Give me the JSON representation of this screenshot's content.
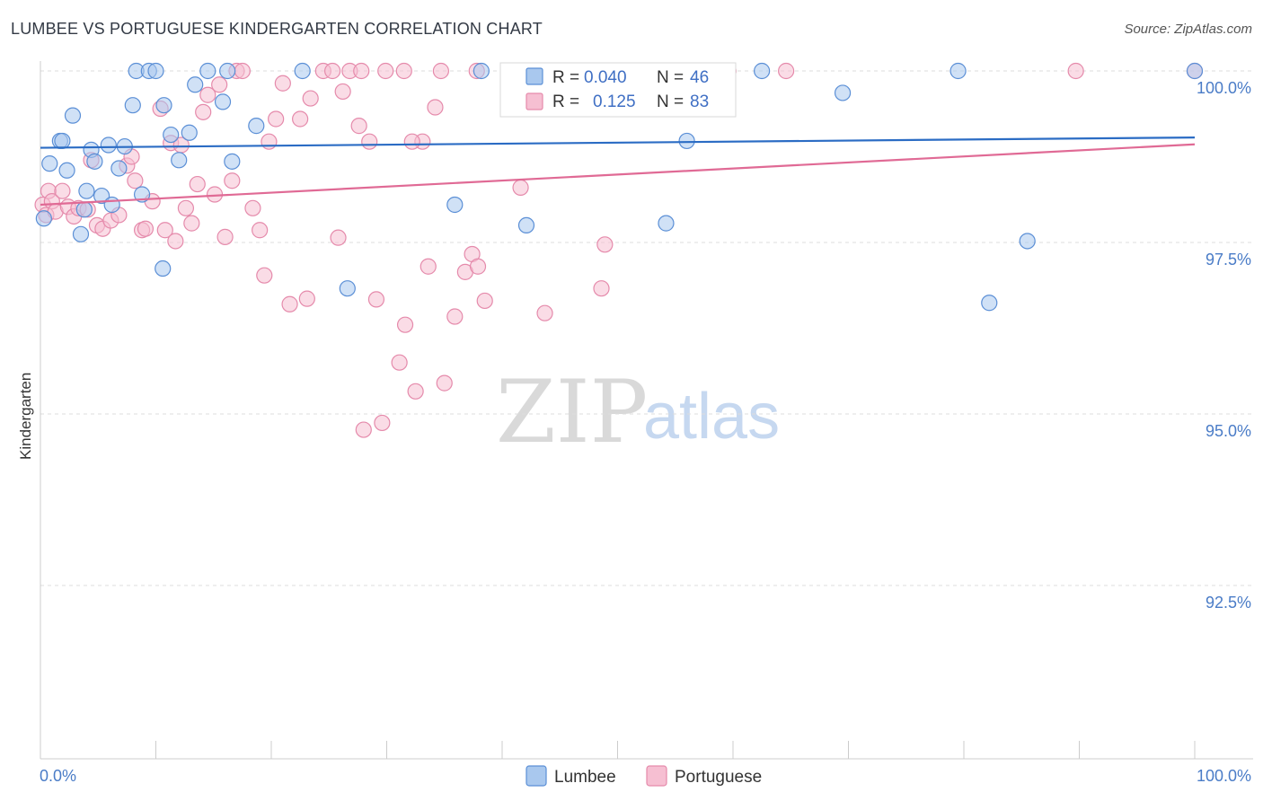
{
  "title": "LUMBEE VS PORTUGUESE KINDERGARTEN CORRELATION CHART",
  "source": "Source: ZipAtlas.com",
  "watermark": {
    "part1": "ZIP",
    "part2": "atlas"
  },
  "legend": {
    "rows": [
      {
        "r_label": "R =",
        "r_value": "0.040",
        "n_label": "N =",
        "n_value": "46"
      },
      {
        "r_label": "R =",
        "r_value": "0.125",
        "n_label": "N =",
        "n_value": "83"
      }
    ]
  },
  "bottom_legend": {
    "lumbee": "Lumbee",
    "portuguese": "Portuguese"
  },
  "colors": {
    "lumbee_fill": "#a9c8ee",
    "lumbee_stroke": "#5b8fd6",
    "lumbee_line": "#2b6cc4",
    "portuguese_fill": "#f6bfd2",
    "portuguese_stroke": "#e58aab",
    "portuguese_line": "#e06a95"
  },
  "chart_data": {
    "type": "scatter",
    "title": "LUMBEE VS PORTUGUESE KINDERGARTEN CORRELATION CHART",
    "xlabel": "",
    "ylabel": "Kindergarten",
    "xlim": [
      0,
      100
    ],
    "ylim": [
      90.2,
      100.4
    ],
    "x_tick_labels": [
      "0.0%",
      "100.0%"
    ],
    "y_ticks": [
      {
        "value": 100.0,
        "label": "100.0%"
      },
      {
        "value": 97.5,
        "label": "97.5%"
      },
      {
        "value": 95.0,
        "label": "95.0%"
      },
      {
        "value": 92.5,
        "label": "92.5%"
      }
    ],
    "series": [
      {
        "name": "Lumbee",
        "R": 0.04,
        "N": 46,
        "trend": {
          "x": [
            0,
            100
          ],
          "y": [
            98.88,
            99.03
          ]
        },
        "points": [
          [
            0.3,
            97.85
          ],
          [
            0.8,
            98.65
          ],
          [
            1.7,
            98.98
          ],
          [
            2.3,
            98.55
          ],
          [
            2.8,
            99.35
          ],
          [
            3.5,
            97.62
          ],
          [
            3.8,
            97.98
          ],
          [
            4.4,
            98.85
          ],
          [
            4.7,
            98.68
          ],
          [
            5.3,
            98.18
          ],
          [
            5.9,
            98.92
          ],
          [
            6.2,
            98.05
          ],
          [
            6.8,
            98.58
          ],
          [
            7.3,
            98.9
          ],
          [
            8.0,
            99.5
          ],
          [
            8.3,
            100.0
          ],
          [
            8.8,
            98.2
          ],
          [
            9.4,
            100.0
          ],
          [
            10.0,
            100.0
          ],
          [
            10.6,
            97.12
          ],
          [
            10.7,
            99.5
          ],
          [
            11.3,
            99.07
          ],
          [
            12.0,
            98.7
          ],
          [
            12.9,
            99.1
          ],
          [
            13.4,
            99.8
          ],
          [
            14.5,
            100.0
          ],
          [
            15.8,
            99.55
          ],
          [
            16.2,
            100.0
          ],
          [
            16.6,
            98.68
          ],
          [
            18.7,
            99.2
          ],
          [
            22.7,
            100.0
          ],
          [
            26.6,
            96.83
          ],
          [
            35.9,
            98.05
          ],
          [
            38.2,
            100.0
          ],
          [
            42.1,
            97.75
          ],
          [
            48.3,
            100.0
          ],
          [
            54.2,
            97.78
          ],
          [
            56.0,
            98.98
          ],
          [
            62.5,
            100.0
          ],
          [
            69.5,
            99.68
          ],
          [
            79.5,
            100.0
          ],
          [
            82.2,
            96.62
          ],
          [
            85.5,
            97.52
          ],
          [
            100.0,
            100.0
          ],
          [
            1.9,
            98.98
          ],
          [
            4.0,
            98.25
          ]
        ]
      },
      {
        "name": "Portuguese",
        "R": 0.125,
        "N": 83,
        "trend": {
          "x": [
            0,
            100
          ],
          "y": [
            98.05,
            98.93
          ]
        },
        "points": [
          [
            0.2,
            98.05
          ],
          [
            0.5,
            97.9
          ],
          [
            0.7,
            98.25
          ],
          [
            1.0,
            98.1
          ],
          [
            1.3,
            97.95
          ],
          [
            1.9,
            98.25
          ],
          [
            2.4,
            98.02
          ],
          [
            2.9,
            97.88
          ],
          [
            3.3,
            98.0
          ],
          [
            4.1,
            97.98
          ],
          [
            4.4,
            98.7
          ],
          [
            4.9,
            97.75
          ],
          [
            5.4,
            97.7
          ],
          [
            6.1,
            97.82
          ],
          [
            6.8,
            97.9
          ],
          [
            7.5,
            98.62
          ],
          [
            7.9,
            98.75
          ],
          [
            8.2,
            98.4
          ],
          [
            8.8,
            97.68
          ],
          [
            9.1,
            97.7
          ],
          [
            9.7,
            98.1
          ],
          [
            10.4,
            99.45
          ],
          [
            10.8,
            97.68
          ],
          [
            11.3,
            98.95
          ],
          [
            11.7,
            97.52
          ],
          [
            12.2,
            98.92
          ],
          [
            12.6,
            98.0
          ],
          [
            13.1,
            97.78
          ],
          [
            13.6,
            98.35
          ],
          [
            14.1,
            99.4
          ],
          [
            14.5,
            99.65
          ],
          [
            15.1,
            98.2
          ],
          [
            15.5,
            99.8
          ],
          [
            16.0,
            97.58
          ],
          [
            16.6,
            98.4
          ],
          [
            17.0,
            100.0
          ],
          [
            17.5,
            100.0
          ],
          [
            18.4,
            98.0
          ],
          [
            19.0,
            97.68
          ],
          [
            19.4,
            97.02
          ],
          [
            19.8,
            98.97
          ],
          [
            20.4,
            99.3
          ],
          [
            21.0,
            99.82
          ],
          [
            21.6,
            96.6
          ],
          [
            22.5,
            99.3
          ],
          [
            23.1,
            96.68
          ],
          [
            23.4,
            99.6
          ],
          [
            24.5,
            100.0
          ],
          [
            25.3,
            100.0
          ],
          [
            25.8,
            97.57
          ],
          [
            26.2,
            99.7
          ],
          [
            26.8,
            100.0
          ],
          [
            27.6,
            99.2
          ],
          [
            28.5,
            98.97
          ],
          [
            29.1,
            96.67
          ],
          [
            29.6,
            94.87
          ],
          [
            29.9,
            100.0
          ],
          [
            31.1,
            95.75
          ],
          [
            31.6,
            96.3
          ],
          [
            32.5,
            95.33
          ],
          [
            33.1,
            98.97
          ],
          [
            33.6,
            97.15
          ],
          [
            34.2,
            99.47
          ],
          [
            35.0,
            95.45
          ],
          [
            35.9,
            96.42
          ],
          [
            36.8,
            97.07
          ],
          [
            37.4,
            97.33
          ],
          [
            37.9,
            97.15
          ],
          [
            38.5,
            96.65
          ],
          [
            41.6,
            98.3
          ],
          [
            43.7,
            96.47
          ],
          [
            48.6,
            96.83
          ],
          [
            48.9,
            97.47
          ],
          [
            59.6,
            100.0
          ],
          [
            64.6,
            100.0
          ],
          [
            37.8,
            100.0
          ],
          [
            27.8,
            100.0
          ],
          [
            31.5,
            100.0
          ],
          [
            32.2,
            98.97
          ],
          [
            28.0,
            94.77
          ],
          [
            34.7,
            100.0
          ],
          [
            89.7,
            100.0
          ],
          [
            100.0,
            100.0
          ]
        ]
      }
    ]
  }
}
